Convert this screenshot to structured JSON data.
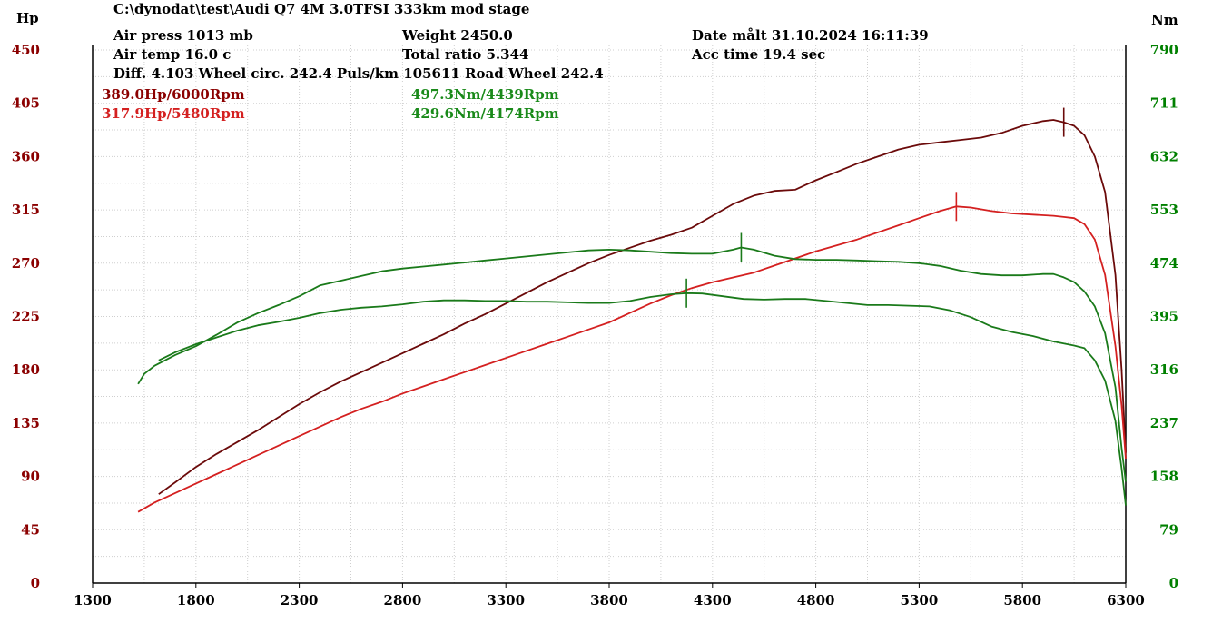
{
  "header": {
    "file_path": "C:\\dynodat\\test\\Audi Q7 4M 3.0TFSI 333km mod stage",
    "air_press": "Air press 1013 mb",
    "air_temp": "Air temp 16.0 c",
    "diff_line": "Diff. 4.103 Wheel circ. 242.4 Puls/km 105611 Road Wheel 242.4",
    "weight": "Weight 2450.0",
    "total_ratio": "Total ratio 5.344",
    "date": "Date målt 31.10.2024 16:11:39",
    "acc_time": "Acc time 19.4 sec"
  },
  "peaks": {
    "hp1": "389.0Hp/6000Rpm",
    "hp2": "317.9Hp/5480Rpm",
    "nm1": "497.3Nm/4439Rpm",
    "nm2": "429.6Nm/4174Rpm"
  },
  "colors": {
    "hp_axis": "#8b0000",
    "nm_axis": "#008000",
    "hp1": "#6b0a0a",
    "hp2": "#d42020",
    "nm": "#1a7a1a"
  },
  "chart_data": {
    "type": "line",
    "title": "",
    "xlabel": "",
    "ylabel_left": "Hp",
    "ylabel_right": "Nm",
    "xlim": [
      1300,
      6300
    ],
    "ylim_left": [
      0,
      450
    ],
    "ylim_right": [
      0,
      790
    ],
    "x_ticks": [
      1300,
      1800,
      2300,
      2800,
      3300,
      3800,
      4300,
      4800,
      5300,
      5800,
      6300
    ],
    "y_ticks_left": [
      0,
      45,
      90,
      135,
      180,
      225,
      270,
      315,
      360,
      405,
      450
    ],
    "y_ticks_right": [
      0,
      79,
      158,
      237,
      316,
      395,
      474,
      553,
      632,
      711,
      790
    ],
    "grid": true,
    "series": [
      {
        "name": "",
        "axis": "left",
        "color": "#6b0a0a",
        "peak": [
          6000,
          389.0
        ],
        "points": [
          [
            1620,
            75
          ],
          [
            1700,
            85
          ],
          [
            1800,
            98
          ],
          [
            1900,
            109
          ],
          [
            2000,
            119
          ],
          [
            2100,
            129
          ],
          [
            2200,
            140
          ],
          [
            2300,
            151
          ],
          [
            2400,
            161
          ],
          [
            2500,
            170
          ],
          [
            2600,
            178
          ],
          [
            2700,
            186
          ],
          [
            2800,
            194
          ],
          [
            2900,
            202
          ],
          [
            3000,
            210
          ],
          [
            3100,
            219
          ],
          [
            3200,
            227
          ],
          [
            3300,
            236
          ],
          [
            3400,
            245
          ],
          [
            3500,
            254
          ],
          [
            3600,
            262
          ],
          [
            3700,
            270
          ],
          [
            3800,
            277
          ],
          [
            3900,
            283
          ],
          [
            4000,
            289
          ],
          [
            4100,
            294
          ],
          [
            4200,
            300
          ],
          [
            4300,
            310
          ],
          [
            4400,
            320
          ],
          [
            4500,
            327
          ],
          [
            4600,
            331
          ],
          [
            4700,
            332
          ],
          [
            4800,
            340
          ],
          [
            4900,
            347
          ],
          [
            5000,
            354
          ],
          [
            5100,
            360
          ],
          [
            5200,
            366
          ],
          [
            5300,
            370
          ],
          [
            5400,
            372
          ],
          [
            5500,
            374
          ],
          [
            5600,
            376
          ],
          [
            5700,
            380
          ],
          [
            5800,
            386
          ],
          [
            5900,
            390
          ],
          [
            5950,
            391
          ],
          [
            6000,
            389
          ],
          [
            6050,
            386
          ],
          [
            6100,
            378
          ],
          [
            6150,
            360
          ],
          [
            6200,
            330
          ],
          [
            6250,
            260
          ],
          [
            6280,
            180
          ],
          [
            6300,
            110
          ]
        ]
      },
      {
        "name": "",
        "axis": "left",
        "color": "#d42020",
        "peak": [
          5480,
          317.9
        ],
        "points": [
          [
            1520,
            60
          ],
          [
            1600,
            68
          ],
          [
            1700,
            76
          ],
          [
            1800,
            84
          ],
          [
            1900,
            92
          ],
          [
            2000,
            100
          ],
          [
            2100,
            108
          ],
          [
            2200,
            116
          ],
          [
            2300,
            124
          ],
          [
            2400,
            132
          ],
          [
            2500,
            140
          ],
          [
            2600,
            147
          ],
          [
            2700,
            153
          ],
          [
            2800,
            160
          ],
          [
            2900,
            166
          ],
          [
            3000,
            172
          ],
          [
            3100,
            178
          ],
          [
            3200,
            184
          ],
          [
            3300,
            190
          ],
          [
            3400,
            196
          ],
          [
            3500,
            202
          ],
          [
            3600,
            208
          ],
          [
            3700,
            214
          ],
          [
            3800,
            220
          ],
          [
            3900,
            228
          ],
          [
            4000,
            236
          ],
          [
            4100,
            243
          ],
          [
            4200,
            249
          ],
          [
            4300,
            254
          ],
          [
            4400,
            258
          ],
          [
            4500,
            262
          ],
          [
            4600,
            268
          ],
          [
            4700,
            274
          ],
          [
            4800,
            280
          ],
          [
            4900,
            285
          ],
          [
            5000,
            290
          ],
          [
            5100,
            296
          ],
          [
            5200,
            302
          ],
          [
            5300,
            308
          ],
          [
            5400,
            314
          ],
          [
            5480,
            317.9
          ],
          [
            5550,
            317
          ],
          [
            5650,
            314
          ],
          [
            5750,
            312
          ],
          [
            5850,
            311
          ],
          [
            5950,
            310
          ],
          [
            6000,
            309
          ],
          [
            6050,
            308
          ],
          [
            6100,
            303
          ],
          [
            6150,
            290
          ],
          [
            6200,
            260
          ],
          [
            6250,
            200
          ],
          [
            6280,
            150
          ],
          [
            6300,
            105
          ]
        ]
      },
      {
        "name": "",
        "axis": "right",
        "color": "#1a7a1a",
        "peak": [
          4439,
          497.3
        ],
        "points": [
          [
            1520,
            295
          ],
          [
            1550,
            310
          ],
          [
            1600,
            322
          ],
          [
            1700,
            338
          ],
          [
            1800,
            351
          ],
          [
            1900,
            368
          ],
          [
            2000,
            386
          ],
          [
            2100,
            400
          ],
          [
            2200,
            412
          ],
          [
            2300,
            425
          ],
          [
            2400,
            441
          ],
          [
            2500,
            448
          ],
          [
            2600,
            455
          ],
          [
            2700,
            462
          ],
          [
            2800,
            466
          ],
          [
            2900,
            469
          ],
          [
            3000,
            472
          ],
          [
            3100,
            475
          ],
          [
            3200,
            478
          ],
          [
            3300,
            481
          ],
          [
            3400,
            484
          ],
          [
            3500,
            487
          ],
          [
            3600,
            490
          ],
          [
            3700,
            493
          ],
          [
            3800,
            494
          ],
          [
            3900,
            493
          ],
          [
            4000,
            491
          ],
          [
            4100,
            489
          ],
          [
            4200,
            488
          ],
          [
            4300,
            488
          ],
          [
            4400,
            494
          ],
          [
            4439,
            497.3
          ],
          [
            4500,
            494
          ],
          [
            4600,
            485
          ],
          [
            4700,
            480
          ],
          [
            4800,
            479
          ],
          [
            4900,
            479
          ],
          [
            5000,
            478
          ],
          [
            5100,
            477
          ],
          [
            5200,
            476
          ],
          [
            5300,
            474
          ],
          [
            5400,
            470
          ],
          [
            5500,
            463
          ],
          [
            5600,
            458
          ],
          [
            5700,
            456
          ],
          [
            5800,
            456
          ],
          [
            5900,
            458
          ],
          [
            5950,
            458
          ],
          [
            6000,
            453
          ],
          [
            6050,
            446
          ],
          [
            6100,
            432
          ],
          [
            6150,
            410
          ],
          [
            6200,
            370
          ],
          [
            6250,
            290
          ],
          [
            6280,
            200
          ],
          [
            6300,
            150
          ]
        ]
      },
      {
        "name": "",
        "axis": "right",
        "color": "#1a7a1a",
        "peak": [
          4174,
          429.6
        ],
        "points": [
          [
            1620,
            330
          ],
          [
            1700,
            342
          ],
          [
            1800,
            354
          ],
          [
            1900,
            364
          ],
          [
            2000,
            374
          ],
          [
            2100,
            382
          ],
          [
            2200,
            387
          ],
          [
            2300,
            393
          ],
          [
            2400,
            400
          ],
          [
            2500,
            405
          ],
          [
            2600,
            408
          ],
          [
            2700,
            410
          ],
          [
            2800,
            413
          ],
          [
            2900,
            417
          ],
          [
            3000,
            419
          ],
          [
            3100,
            419
          ],
          [
            3200,
            418
          ],
          [
            3300,
            418
          ],
          [
            3400,
            417
          ],
          [
            3500,
            417
          ],
          [
            3600,
            416
          ],
          [
            3700,
            415
          ],
          [
            3800,
            415
          ],
          [
            3900,
            418
          ],
          [
            4000,
            424
          ],
          [
            4100,
            428
          ],
          [
            4174,
            429.6
          ],
          [
            4250,
            429
          ],
          [
            4350,
            425
          ],
          [
            4450,
            421
          ],
          [
            4550,
            420
          ],
          [
            4650,
            421
          ],
          [
            4750,
            421
          ],
          [
            4850,
            418
          ],
          [
            4950,
            415
          ],
          [
            5050,
            412
          ],
          [
            5150,
            412
          ],
          [
            5250,
            411
          ],
          [
            5350,
            410
          ],
          [
            5450,
            404
          ],
          [
            5550,
            394
          ],
          [
            5650,
            380
          ],
          [
            5750,
            372
          ],
          [
            5850,
            366
          ],
          [
            5950,
            358
          ],
          [
            6050,
            352
          ],
          [
            6100,
            348
          ],
          [
            6150,
            330
          ],
          [
            6200,
            300
          ],
          [
            6250,
            240
          ],
          [
            6280,
            170
          ],
          [
            6300,
            115
          ]
        ]
      }
    ]
  }
}
